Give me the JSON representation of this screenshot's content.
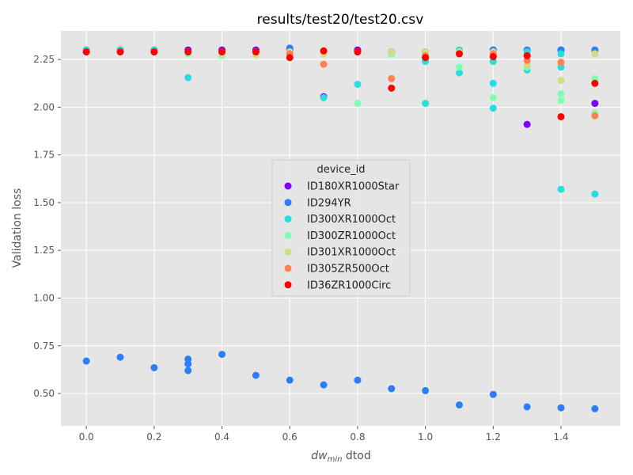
{
  "chart_data": {
    "type": "scatter",
    "title": "results/test20/test20.csv",
    "xlabel_main": "dw",
    "xlabel_sub": "min",
    "xlabel_rest": " dtod",
    "ylabel": "Validation loss",
    "xlim": [
      -0.075,
      1.575
    ],
    "ylim": [
      0.33,
      2.4
    ],
    "xticks": [
      0.0,
      0.2,
      0.4,
      0.6,
      0.8,
      1.0,
      1.2,
      1.4
    ],
    "xtick_labels": [
      "0.0",
      "0.2",
      "0.4",
      "0.6",
      "0.8",
      "1.0",
      "1.2",
      "1.4"
    ],
    "yticks": [
      0.5,
      0.75,
      1.0,
      1.25,
      1.5,
      1.75,
      2.0,
      2.25
    ],
    "ytick_labels": [
      "0.50",
      "0.75",
      "1.00",
      "1.25",
      "1.50",
      "1.75",
      "2.00",
      "2.25"
    ],
    "grid": true,
    "legend": {
      "title": "device_id",
      "placement": "center"
    },
    "series": [
      {
        "name": "ID180XR1000Star",
        "color": "#8000ff",
        "points": [
          [
            0.0,
            2.3
          ],
          [
            0.1,
            2.3
          ],
          [
            0.2,
            2.3
          ],
          [
            0.3,
            2.3
          ],
          [
            0.4,
            2.3
          ],
          [
            0.5,
            2.3
          ],
          [
            0.6,
            2.3
          ],
          [
            0.7,
            2.055
          ],
          [
            0.8,
            2.3
          ],
          [
            0.9,
            2.29
          ],
          [
            1.0,
            2.29
          ],
          [
            1.1,
            2.29
          ],
          [
            1.2,
            2.3
          ],
          [
            1.3,
            1.91
          ],
          [
            1.4,
            2.3
          ],
          [
            1.5,
            2.02
          ]
        ]
      },
      {
        "name": "ID294YR",
        "color": "#2c7ef8",
        "points": [
          [
            0.0,
            0.67
          ],
          [
            0.1,
            0.69
          ],
          [
            0.2,
            0.635
          ],
          [
            0.3,
            0.68
          ],
          [
            0.3,
            0.655
          ],
          [
            0.3,
            0.62
          ],
          [
            0.4,
            0.705
          ],
          [
            0.5,
            0.595
          ],
          [
            0.6,
            0.57
          ],
          [
            0.7,
            0.545
          ],
          [
            0.8,
            0.57
          ],
          [
            0.9,
            0.525
          ],
          [
            1.0,
            0.515
          ],
          [
            1.1,
            0.44
          ],
          [
            1.2,
            0.495
          ],
          [
            1.3,
            0.43
          ],
          [
            1.4,
            0.425
          ],
          [
            1.5,
            0.42
          ],
          [
            0.6,
            2.31
          ],
          [
            1.4,
            2.3
          ],
          [
            1.5,
            2.3
          ],
          [
            1.3,
            2.3
          ],
          [
            1.2,
            2.3
          ]
        ]
      },
      {
        "name": "ID300XR1000Oct",
        "color": "#2adddd",
        "points": [
          [
            0.0,
            2.3
          ],
          [
            0.1,
            2.3
          ],
          [
            0.2,
            2.3
          ],
          [
            0.3,
            2.155
          ],
          [
            0.4,
            2.29
          ],
          [
            0.5,
            2.29
          ],
          [
            0.6,
            2.29
          ],
          [
            0.7,
            2.05
          ],
          [
            0.8,
            2.12
          ],
          [
            0.9,
            2.28
          ],
          [
            1.0,
            2.02
          ],
          [
            1.0,
            2.24
          ],
          [
            1.1,
            2.18
          ],
          [
            1.1,
            2.3
          ],
          [
            1.2,
            2.125
          ],
          [
            1.2,
            1.995
          ],
          [
            1.2,
            2.24
          ],
          [
            1.3,
            2.195
          ],
          [
            1.3,
            2.29
          ],
          [
            1.4,
            2.21
          ],
          [
            1.4,
            1.57
          ],
          [
            1.4,
            2.28
          ],
          [
            1.5,
            1.545
          ],
          [
            1.5,
            2.28
          ]
        ]
      },
      {
        "name": "ID300ZR1000Oct",
        "color": "#80ffb4",
        "points": [
          [
            0.0,
            2.29
          ],
          [
            0.1,
            2.29
          ],
          [
            0.2,
            2.29
          ],
          [
            0.3,
            2.28
          ],
          [
            0.4,
            2.27
          ],
          [
            0.5,
            2.28
          ],
          [
            0.6,
            2.28
          ],
          [
            0.7,
            2.28
          ],
          [
            0.8,
            2.02
          ],
          [
            0.9,
            2.28
          ],
          [
            1.0,
            2.28
          ],
          [
            1.1,
            2.21
          ],
          [
            1.2,
            2.05
          ],
          [
            1.3,
            2.21
          ],
          [
            1.4,
            2.07
          ],
          [
            1.4,
            2.035
          ],
          [
            1.5,
            2.15
          ],
          [
            1.5,
            1.97
          ]
        ]
      },
      {
        "name": "ID301XR1000Oct",
        "color": "#d4dd80",
        "points": [
          [
            0.0,
            2.29
          ],
          [
            0.1,
            2.29
          ],
          [
            0.2,
            2.29
          ],
          [
            0.3,
            2.29
          ],
          [
            0.4,
            2.28
          ],
          [
            0.5,
            2.275
          ],
          [
            0.6,
            2.29
          ],
          [
            0.7,
            2.28
          ],
          [
            0.8,
            2.29
          ],
          [
            0.9,
            2.29
          ],
          [
            1.0,
            2.29
          ],
          [
            1.1,
            2.29
          ],
          [
            1.2,
            2.29
          ],
          [
            1.3,
            2.22
          ],
          [
            1.4,
            2.14
          ],
          [
            1.5,
            2.28
          ]
        ]
      },
      {
        "name": "ID305ZR500Oct",
        "color": "#ff8052",
        "points": [
          [
            0.0,
            2.29
          ],
          [
            0.1,
            2.29
          ],
          [
            0.2,
            2.29
          ],
          [
            0.3,
            2.29
          ],
          [
            0.4,
            2.29
          ],
          [
            0.5,
            2.29
          ],
          [
            0.6,
            2.28
          ],
          [
            0.7,
            2.225
          ],
          [
            0.8,
            2.29
          ],
          [
            0.9,
            2.15
          ],
          [
            1.0,
            2.27
          ],
          [
            1.1,
            2.28
          ],
          [
            1.2,
            2.28
          ],
          [
            1.3,
            2.245
          ],
          [
            1.4,
            2.235
          ],
          [
            1.5,
            1.955
          ]
        ]
      },
      {
        "name": "ID36ZR1000Circ",
        "color": "#ff0000",
        "points": [
          [
            0.0,
            2.29
          ],
          [
            0.1,
            2.29
          ],
          [
            0.2,
            2.29
          ],
          [
            0.3,
            2.29
          ],
          [
            0.4,
            2.29
          ],
          [
            0.5,
            2.29
          ],
          [
            0.6,
            2.26
          ],
          [
            0.7,
            2.295
          ],
          [
            0.8,
            2.29
          ],
          [
            0.9,
            2.1
          ],
          [
            1.0,
            2.26
          ],
          [
            1.1,
            2.28
          ],
          [
            1.2,
            2.265
          ],
          [
            1.3,
            2.27
          ],
          [
            1.4,
            1.95
          ],
          [
            1.5,
            2.125
          ]
        ]
      }
    ]
  }
}
